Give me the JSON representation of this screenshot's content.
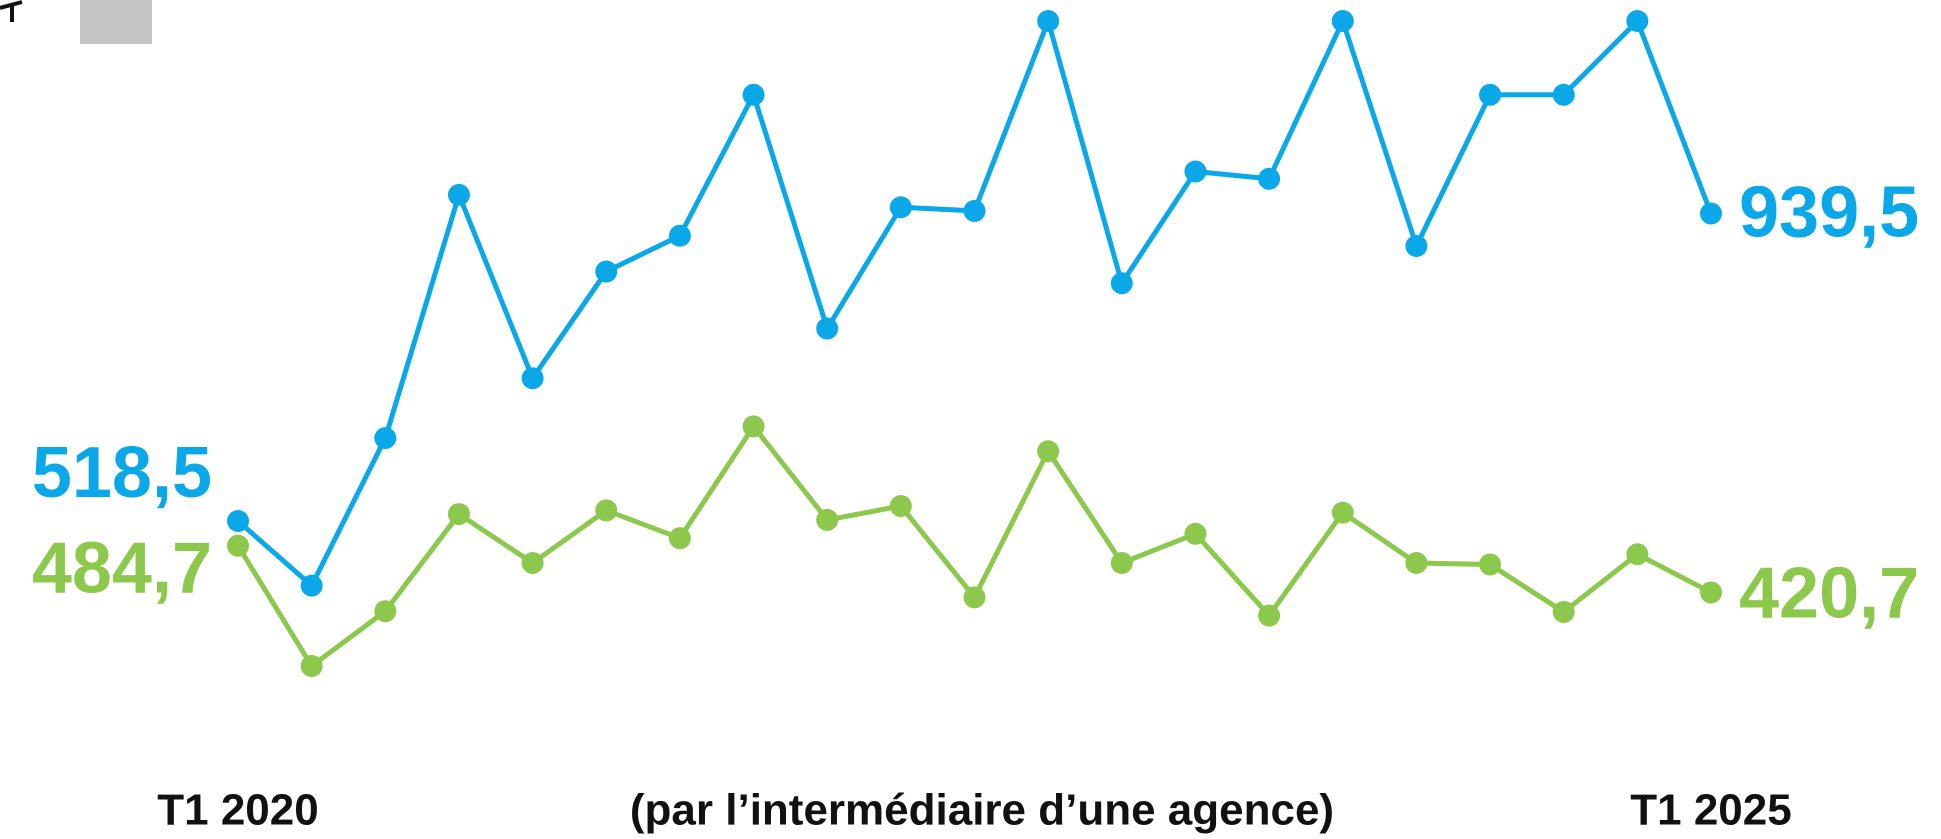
{
  "chart_data": {
    "type": "line",
    "subtitle": "(par l’intermédiaire d’une agence)",
    "categories": [
      "T1 2020",
      null,
      null,
      null,
      null,
      null,
      null,
      null,
      null,
      null,
      null,
      null,
      null,
      null,
      null,
      null,
      null,
      null,
      null,
      null,
      "T1 2025"
    ],
    "series": [
      {
        "name": null,
        "color": "#0aa8e8",
        "values": [
          518.5,
          430,
          632,
          965,
          714,
          860,
          909,
          1102,
          782,
          948,
          943,
          1203,
          844,
          997,
          987,
          1203,
          895,
          1102,
          1102,
          1203,
          939.5
        ],
        "value_labels": [
          "518,5",
          null,
          null,
          null,
          null,
          null,
          null,
          null,
          null,
          null,
          null,
          null,
          null,
          null,
          null,
          null,
          null,
          null,
          null,
          null,
          "939,5"
        ]
      },
      {
        "name": null,
        "color": "#8cc84b",
        "values": [
          484.7,
          320,
          395,
          528,
          461,
          533,
          495,
          648,
          520,
          539,
          414,
          614,
          461,
          501,
          389,
          530,
          461,
          459,
          394,
          473,
          420.7
        ],
        "value_labels": [
          "484,7",
          null,
          null,
          null,
          null,
          null,
          null,
          null,
          null,
          null,
          null,
          null,
          null,
          null,
          null,
          null,
          null,
          null,
          null,
          null,
          "420,7"
        ]
      }
    ]
  }
}
